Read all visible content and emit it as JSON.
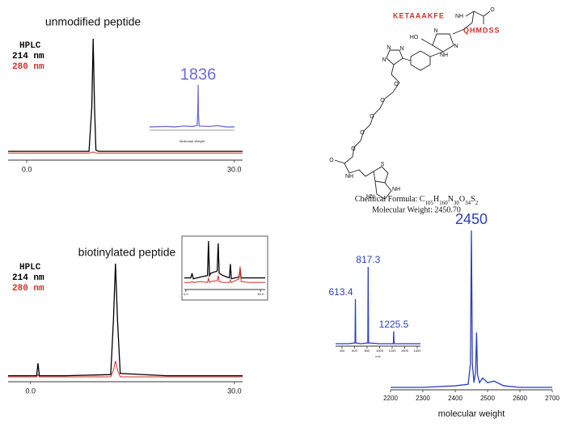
{
  "chart_data": [
    {
      "type": "line",
      "title": "unmodified peptide",
      "legend_title": "HPLC",
      "x": [
        -2.7,
        5,
        9,
        9.4,
        9.6,
        9.8,
        10,
        10.4,
        11,
        20,
        31.2
      ],
      "series": [
        {
          "name": "214 nm",
          "color": "#000000",
          "values": [
            2,
            2,
            2,
            40,
            100,
            40,
            3,
            2,
            2,
            2,
            2
          ]
        },
        {
          "name": "280 nm",
          "color": "#d0302a",
          "values": [
            0.5,
            0.5,
            0.5,
            1,
            1.5,
            1,
            0.5,
            0.5,
            0.5,
            0.5,
            0.5
          ]
        }
      ],
      "xlim": [
        -2.7,
        31.2
      ],
      "ylim": [
        0,
        100
      ],
      "xticks": [
        {
          "value": 0,
          "label": "0.0"
        },
        {
          "value": 30,
          "label": "30.0"
        }
      ]
    },
    {
      "type": "line",
      "xlabel": "Molecular Weight",
      "x": [
        1550,
        1650,
        1700,
        1750,
        1800,
        1830,
        1834,
        1836,
        1838,
        1842,
        1900,
        1950,
        2000,
        2050
      ],
      "series": [
        {
          "color": "#6b6bd6",
          "values": [
            2,
            3,
            2,
            4,
            3,
            5,
            40,
            100,
            30,
            4,
            3,
            5,
            2,
            2
          ]
        }
      ],
      "xlim": [
        1550,
        2050
      ],
      "ylim": [
        0,
        100
      ],
      "peak_labels": [
        {
          "x": 1836,
          "label": "1836"
        }
      ]
    },
    {
      "type": "line",
      "title": "biotinylated peptide",
      "legend_title": "HPLC",
      "x": [
        -3.3,
        0.5,
        0.9,
        1.1,
        1.3,
        1.7,
        5,
        11.8,
        12.2,
        12.5,
        12.8,
        13.2,
        20,
        31.2
      ],
      "series": [
        {
          "name": "214 nm",
          "color": "#000000",
          "values": [
            1,
            1,
            1,
            12,
            1,
            1,
            1,
            2,
            50,
            100,
            50,
            3,
            1,
            1
          ]
        },
        {
          "name": "280 nm",
          "color": "#d0302a",
          "values": [
            0,
            0,
            0,
            2,
            0,
            0,
            0,
            0,
            6,
            14,
            6,
            0,
            0,
            0
          ]
        }
      ],
      "xlim": [
        -3.3,
        31.2
      ],
      "ylim": [
        0,
        100
      ],
      "xticks": [
        {
          "value": 0,
          "label": "0.0"
        },
        {
          "value": 30,
          "label": "30.0"
        }
      ]
    },
    {
      "type": "line",
      "x": [
        -0.6,
        2,
        2.5,
        3,
        6,
        8.7,
        9.1,
        9.5,
        10,
        12.6,
        13,
        13.4,
        15,
        17.5,
        17.9,
        18.3,
        21.4,
        21.8,
        22.2,
        25,
        31.9
      ],
      "series": [
        {
          "color": "#000000",
          "values": [
            20,
            20,
            30,
            18,
            22,
            25,
            100,
            25,
            30,
            35,
            95,
            30,
            25,
            20,
            50,
            18,
            22,
            40,
            20,
            20,
            20
          ]
        },
        {
          "color": "#d0302a",
          "values": [
            10,
            10,
            12,
            10,
            12,
            10,
            20,
            10,
            12,
            14,
            25,
            12,
            10,
            10,
            15,
            10,
            18,
            45,
            12,
            10,
            10
          ]
        }
      ],
      "xlim": [
        -0.6,
        31.9
      ],
      "ylim": [
        0,
        100
      ],
      "xticks": [
        {
          "value": 0,
          "label": "0.0"
        },
        {
          "value": 30,
          "label": "30.0"
        }
      ]
    },
    {
      "type": "line",
      "xlabel": "molecular weight",
      "x": [
        2200,
        2300,
        2400,
        2440,
        2447,
        2450,
        2453,
        2458,
        2463,
        2466,
        2469,
        2475,
        2485,
        2500,
        2520,
        2550,
        2600,
        2700
      ],
      "series": [
        {
          "color": "#2a3fbf",
          "values": [
            0,
            0,
            1,
            2,
            15,
            100,
            15,
            3,
            10,
            35,
            8,
            3,
            6,
            3,
            4,
            1,
            0,
            0
          ]
        }
      ],
      "xlim": [
        2200,
        2700
      ],
      "ylim": [
        0,
        100
      ],
      "xticks": [
        2200,
        2300,
        2400,
        2500,
        2600,
        2700
      ],
      "peak_labels": [
        {
          "x": 2450,
          "label": "2450"
        }
      ]
    },
    {
      "type": "line",
      "xlabel": "m/z",
      "x": [
        297,
        500,
        608,
        613.4,
        619,
        700,
        812,
        817.3,
        823,
        1000,
        1220,
        1225.5,
        1231,
        1400,
        1652
      ],
      "series": [
        {
          "color": "#2a3fbf",
          "values": [
            0,
            0,
            1,
            58,
            1,
            0,
            1,
            100,
            1,
            0,
            0,
            16,
            0,
            0,
            0
          ]
        }
      ],
      "xlim": [
        297,
        1652
      ],
      "ylim": [
        0,
        100
      ],
      "xticks": [
        400,
        600,
        800,
        1000,
        1200,
        1400,
        1600
      ],
      "peak_labels": [
        {
          "x": 613.4,
          "label": "613.4"
        },
        {
          "x": 817.3,
          "label": "817.3"
        },
        {
          "x": 1225.5,
          "label": "1225.5"
        }
      ]
    }
  ],
  "structure": {
    "peptide_n": "KETAAAKFE",
    "peptide_c": "QHMDSS",
    "atoms": [
      "NH",
      "O",
      "HO",
      "N",
      "N",
      "NH",
      "N",
      "N",
      "N",
      "O",
      "O",
      "O",
      "O",
      "O",
      "NH",
      "O",
      "S",
      "HN",
      "NH"
    ],
    "formula_label": "Chemical Formula:",
    "formula": [
      "C",
      "105",
      "H",
      "160",
      "N",
      "30",
      "O",
      "34",
      "S",
      "2"
    ],
    "molecular_weight": "Molecular Weight: 2450.70"
  }
}
